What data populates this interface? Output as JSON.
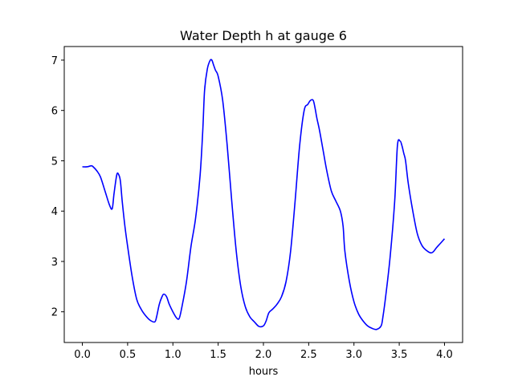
{
  "chart_data": {
    "type": "line",
    "title": "Water Depth h at gauge 6",
    "xlabel": "hours",
    "ylabel": "",
    "xlim": [
      -0.2,
      4.2
    ],
    "ylim": [
      1.39,
      7.27
    ],
    "grid": false,
    "legend": "none",
    "x_ticks": [
      0.0,
      0.5,
      1.0,
      1.5,
      2.0,
      2.5,
      3.0,
      3.5,
      4.0
    ],
    "x_tick_labels": [
      "0.0",
      "0.5",
      "1.0",
      "1.5",
      "2.0",
      "2.5",
      "3.0",
      "3.5",
      "4.0"
    ],
    "y_ticks": [
      2,
      3,
      4,
      5,
      6,
      7
    ],
    "y_tick_labels": [
      "2",
      "3",
      "4",
      "5",
      "6",
      "7"
    ],
    "colors": {
      "series": "#0000ff",
      "axes": "#000000",
      "background": "#ffffff"
    },
    "series": [
      {
        "x": [
          0.0,
          0.05,
          0.1,
          0.12,
          0.16,
          0.2,
          0.25,
          0.3,
          0.33,
          0.35,
          0.38,
          0.4,
          0.42,
          0.44,
          0.47,
          0.5,
          0.55,
          0.6,
          0.65,
          0.7,
          0.75,
          0.8,
          0.82,
          0.85,
          0.88,
          0.9,
          0.93,
          0.96,
          1.0,
          1.04,
          1.07,
          1.1,
          1.15,
          1.2,
          1.25,
          1.3,
          1.33,
          1.35,
          1.38,
          1.41,
          1.43,
          1.45,
          1.47,
          1.5,
          1.55,
          1.6,
          1.65,
          1.7,
          1.75,
          1.8,
          1.85,
          1.9,
          1.95,
          2.0,
          2.03,
          2.06,
          2.1,
          2.15,
          2.2,
          2.25,
          2.3,
          2.35,
          2.4,
          2.45,
          2.49,
          2.52,
          2.55,
          2.57,
          2.59,
          2.62,
          2.66,
          2.7,
          2.75,
          2.8,
          2.85,
          2.88,
          2.9,
          2.95,
          3.0,
          3.05,
          3.1,
          3.15,
          3.2,
          3.25,
          3.3,
          3.32,
          3.35,
          3.4,
          3.45,
          3.48,
          3.51,
          3.53,
          3.55,
          3.57,
          3.6,
          3.65,
          3.7,
          3.75,
          3.8,
          3.85,
          3.88,
          3.91,
          3.95,
          4.0
        ],
        "y": [
          4.88,
          4.88,
          4.9,
          4.88,
          4.8,
          4.68,
          4.4,
          4.12,
          4.05,
          4.35,
          4.72,
          4.73,
          4.6,
          4.2,
          3.7,
          3.3,
          2.7,
          2.25,
          2.05,
          1.92,
          1.83,
          1.8,
          1.9,
          2.15,
          2.3,
          2.35,
          2.3,
          2.15,
          2.0,
          1.88,
          1.87,
          2.1,
          2.6,
          3.3,
          3.85,
          4.7,
          5.6,
          6.4,
          6.82,
          6.99,
          7.0,
          6.9,
          6.8,
          6.68,
          6.2,
          5.3,
          4.2,
          3.2,
          2.5,
          2.1,
          1.9,
          1.8,
          1.71,
          1.72,
          1.82,
          1.98,
          2.05,
          2.15,
          2.3,
          2.6,
          3.2,
          4.2,
          5.3,
          6.0,
          6.12,
          6.2,
          6.2,
          6.05,
          5.85,
          5.6,
          5.2,
          4.8,
          4.4,
          4.2,
          4.0,
          3.7,
          3.2,
          2.6,
          2.2,
          1.96,
          1.82,
          1.72,
          1.67,
          1.65,
          1.72,
          1.9,
          2.3,
          3.1,
          4.2,
          5.3,
          5.39,
          5.3,
          5.15,
          5.0,
          4.55,
          4.0,
          3.55,
          3.32,
          3.22,
          3.17,
          3.2,
          3.27,
          3.35,
          3.45
        ]
      }
    ]
  }
}
